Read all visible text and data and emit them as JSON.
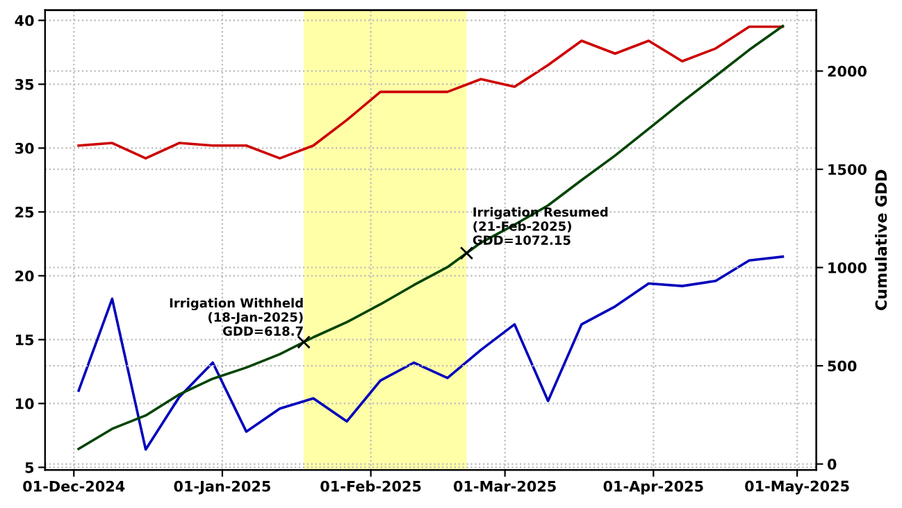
{
  "chart_data": {
    "type": "line",
    "x": [
      "2024-12-02",
      "2024-12-09",
      "2024-12-16",
      "2024-12-23",
      "2024-12-30",
      "2025-01-06",
      "2025-01-13",
      "2025-01-20",
      "2025-01-27",
      "2025-02-03",
      "2025-02-10",
      "2025-02-17",
      "2025-02-24",
      "2025-03-03",
      "2025-03-10",
      "2025-03-17",
      "2025-03-24",
      "2025-03-31",
      "2025-04-07",
      "2025-04-14",
      "2025-04-21",
      "2025-04-28"
    ],
    "series": [
      {
        "color": "#cc0000",
        "values": [
          30.2,
          30.4,
          29.2,
          30.4,
          30.2,
          30.2,
          29.2,
          30.2,
          32.2,
          34.4,
          34.4,
          34.4,
          35.4,
          34.8,
          36.5,
          38.4,
          37.4,
          38.4,
          36.8,
          37.8,
          39.5,
          39.5
        ]
      },
      {
        "color": "#0000bb",
        "values": [
          11.0,
          18.2,
          6.4,
          10.5,
          13.2,
          7.8,
          9.6,
          10.4,
          8.6,
          11.8,
          13.2,
          12.0,
          14.2,
          16.2,
          10.2,
          16.2,
          17.6,
          19.4,
          19.2,
          19.6,
          21.2,
          21.5
        ]
      },
      {
        "color": "#004400",
        "axis": "y2",
        "values": [
          77,
          179,
          247,
          354,
          434,
          491,
          559,
          645,
          722,
          813,
          911,
          1002,
          1127,
          1218,
          1316,
          1445,
          1570,
          1706,
          1843,
          1975,
          2108,
          2229
        ]
      }
    ],
    "y2label": "Cumulative GDD",
    "xlim": [
      "2024-11-25",
      "2025-05-05"
    ],
    "xticks": [
      {
        "value": "2024-12-01",
        "label": "01-Dec-2024"
      },
      {
        "value": "2025-01-01",
        "label": "01-Jan-2025"
      },
      {
        "value": "2025-02-01",
        "label": "01-Feb-2025"
      },
      {
        "value": "2025-03-01",
        "label": "01-Mar-2025"
      },
      {
        "value": "2025-04-01",
        "label": "01-Apr-2025"
      },
      {
        "value": "2025-05-01",
        "label": "01-May-2025"
      }
    ],
    "ylim": [
      4.8,
      40.8
    ],
    "yticks": [
      5,
      10,
      15,
      20,
      25,
      30,
      35,
      40
    ],
    "y2lim": [
      -30,
      2310
    ],
    "y2ticks": [
      0,
      500,
      1000,
      1500,
      2000
    ],
    "bands": [
      {
        "axis": "x",
        "from": "2025-01-18",
        "to": "2025-02-21",
        "color": "#ffffa8"
      }
    ],
    "annotations": [
      "Irrigation Withheld\n(18-Jan-2025)\nGDD=618.7",
      "Irrigation Resumed\n(21-Feb-2025)\nGDD=1072.15"
    ],
    "grid": true,
    "legend": false,
    "marker": "none",
    "line_style": "solid"
  }
}
